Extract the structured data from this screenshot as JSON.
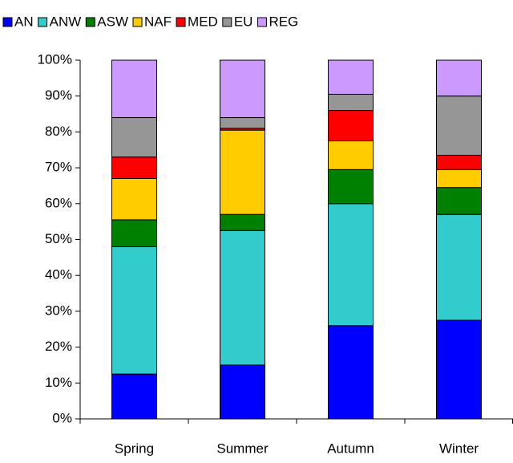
{
  "chart_data": {
    "type": "stacked_bar",
    "categories": [
      "Spring",
      "Summer",
      "Autumn",
      "Winter"
    ],
    "series": [
      {
        "name": "AN",
        "color": "#0000ff",
        "values": [
          12.5,
          15,
          26,
          27.5
        ]
      },
      {
        "name": "ANW",
        "color": "#33cccc",
        "values": [
          35.5,
          37.5,
          34,
          29.5
        ]
      },
      {
        "name": "ASW",
        "color": "#008000",
        "values": [
          7.5,
          4.5,
          9.5,
          7.5
        ]
      },
      {
        "name": "NAF",
        "color": "#ffcc00",
        "values": [
          11.5,
          23.5,
          8,
          5
        ]
      },
      {
        "name": "MED",
        "color": "#ff0000",
        "values": [
          6,
          0.5,
          8.5,
          4
        ]
      },
      {
        "name": "EU",
        "color": "#969696",
        "values": [
          11,
          3,
          4.5,
          16.5
        ]
      },
      {
        "name": "REG",
        "color": "#cc99ff",
        "values": [
          16,
          16,
          9.5,
          10
        ]
      }
    ],
    "ylim": [
      0,
      100
    ],
    "yticks": [
      {
        "value": 0,
        "label": "0%"
      },
      {
        "value": 10,
        "label": "10%"
      },
      {
        "value": 20,
        "label": "20%"
      },
      {
        "value": 30,
        "label": "30%"
      },
      {
        "value": 40,
        "label": "40%"
      },
      {
        "value": 50,
        "label": "50%"
      },
      {
        "value": 60,
        "label": "60%"
      },
      {
        "value": 70,
        "label": "70%"
      },
      {
        "value": 80,
        "label": "80%"
      },
      {
        "value": 90,
        "label": "90%"
      },
      {
        "value": 100,
        "label": "100%"
      }
    ],
    "legend": "top"
  }
}
